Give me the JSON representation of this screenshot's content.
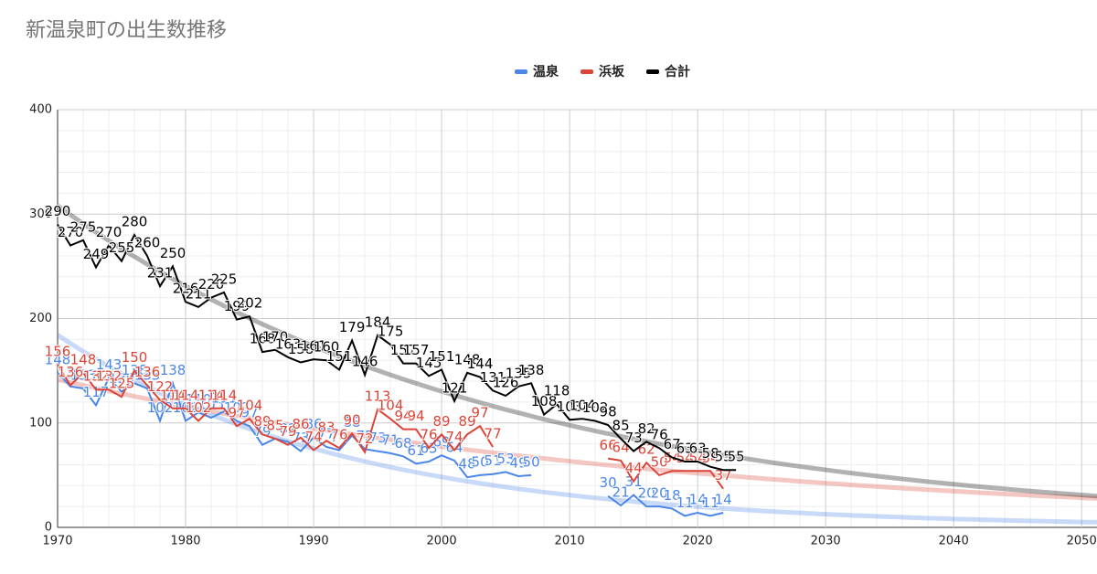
{
  "chart_data": {
    "type": "line",
    "title": "新温泉町の出生数推移",
    "x": [
      1970,
      1971,
      1972,
      1973,
      1974,
      1975,
      1976,
      1977,
      1978,
      1979,
      1980,
      1981,
      1982,
      1983,
      1984,
      1985,
      1986,
      1987,
      1988,
      1989,
      1990,
      1991,
      1992,
      1993,
      1994,
      1995,
      1996,
      1997,
      1998,
      1999,
      2000,
      2001,
      2002,
      2003,
      2004,
      2005,
      2006,
      2007,
      2008,
      2009,
      2010,
      2011,
      2012,
      2013,
      2014,
      2015,
      2016,
      2017,
      2018,
      2019,
      2020,
      2021,
      2022,
      2023
    ],
    "series": [
      {
        "name": "温泉",
        "color": "#4a86e8",
        "values": [
          148,
          135,
          133,
          117,
          143,
          130,
          138,
          133,
          102,
          138,
          102,
          110,
          105,
          111,
          102,
          97,
          79,
          85,
          82,
          73,
          86,
          77,
          74,
          88,
          75,
          73,
          71,
          68,
          61,
          63,
          69,
          64,
          48,
          50,
          51,
          53,
          49,
          50,
          null,
          null,
          null,
          null,
          null,
          30,
          21,
          31,
          20,
          20,
          18,
          11,
          14,
          11,
          14,
          null
        ]
      },
      {
        "name": "浜坂",
        "color": "#db4437",
        "values": [
          156,
          136,
          148,
          132,
          132,
          125,
          150,
          136,
          122,
          114,
          114,
          102,
          114,
          114,
          97,
          104,
          89,
          85,
          79,
          86,
          74,
          83,
          76,
          90,
          72,
          113,
          104,
          94,
          94,
          76,
          89,
          74,
          89,
          97,
          77,
          null,
          null,
          null,
          null,
          null,
          null,
          null,
          null,
          66,
          64,
          44,
          62,
          50,
          54,
          54,
          54,
          54,
          37,
          null
        ]
      },
      {
        "name": "合計",
        "color": "#000000",
        "values": [
          290,
          270,
          275,
          249,
          270,
          255,
          280,
          260,
          231,
          250,
          216,
          211,
          220,
          225,
          199,
          202,
          168,
          170,
          163,
          158,
          161,
          160,
          151,
          179,
          146,
          184,
          175,
          157,
          157,
          145,
          151,
          121,
          148,
          144,
          131,
          126,
          135,
          138,
          108,
          118,
          103,
          104,
          102,
          98,
          85,
          73,
          82,
          76,
          67,
          63,
          63,
          58,
          55,
          55
        ]
      }
    ],
    "xlim": [
      1970,
      2051.2
    ],
    "xticks": [
      1970,
      1980,
      1990,
      2000,
      2010,
      2020,
      2030,
      2040,
      2050
    ],
    "ylim": [
      0,
      400
    ],
    "yticks": [
      0,
      100,
      200,
      300,
      400
    ],
    "grid": true,
    "trendline": true,
    "legend": "top"
  }
}
